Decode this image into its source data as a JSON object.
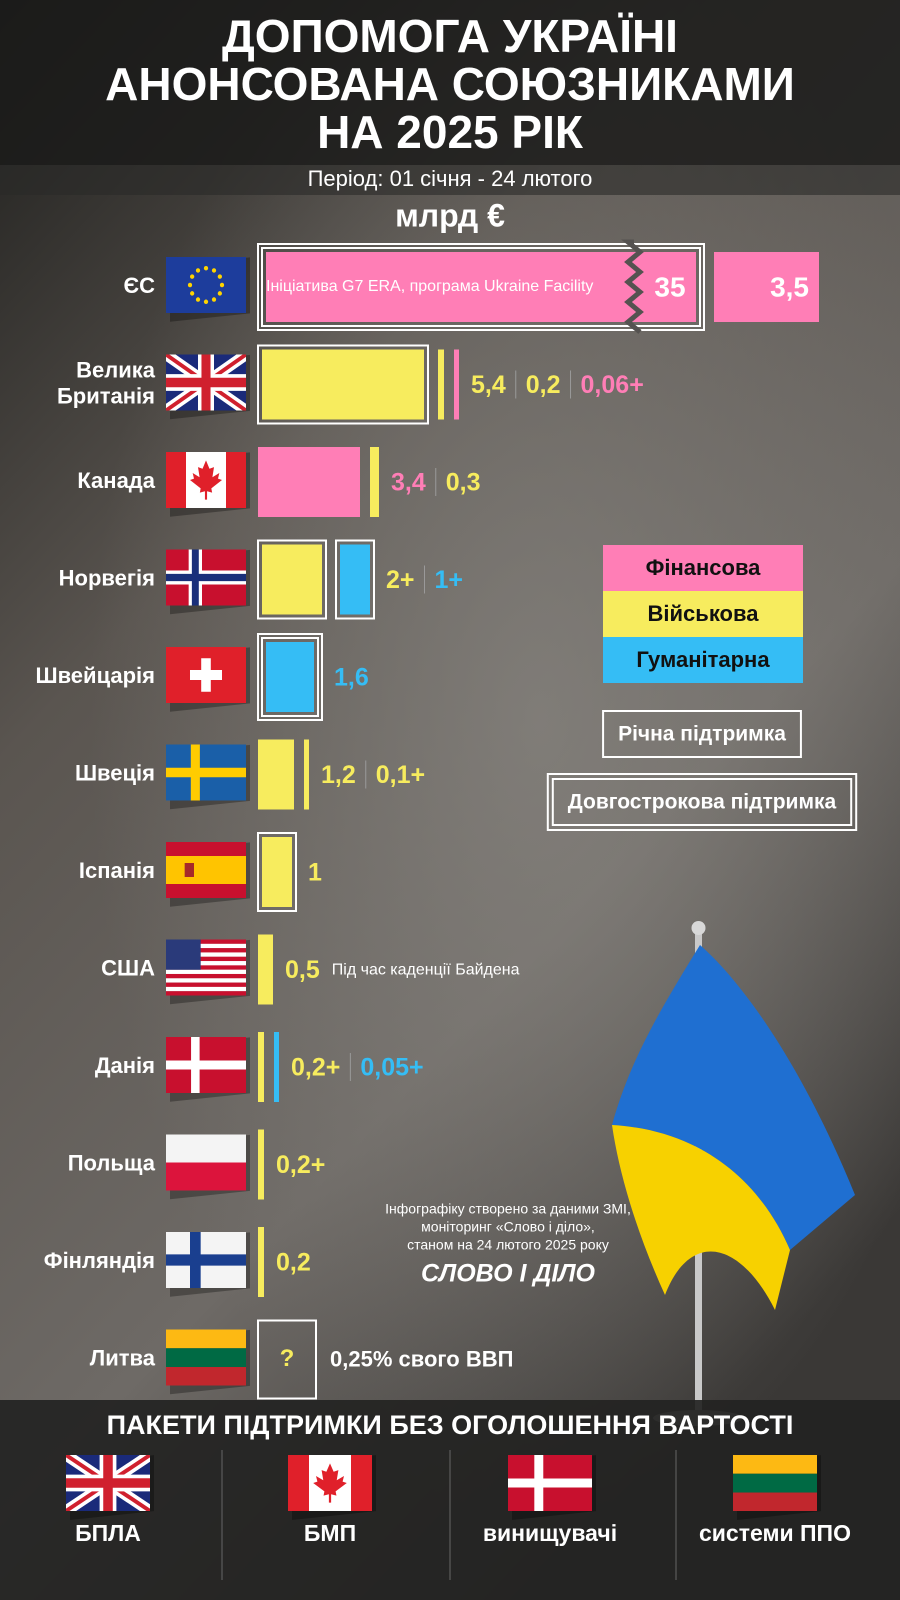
{
  "header": {
    "title": [
      "ДОПОМОГА УКРАЇНІ",
      "АНОНСОВАНА СОЮЗНИКАМИ",
      "НА 2025 РІК"
    ],
    "period": "Період: 01 січня - 24 лютого",
    "unit": "млрд €"
  },
  "rows": [
    {
      "name": [
        "ЄС"
      ],
      "labels_inside": true,
      "note": "Ініціатива G7 ERA, програма Ukraine Facility",
      "items": [
        {
          "value": 35,
          "label": "35",
          "color": "#ff7eb6",
          "frame": "double"
        },
        {
          "value": 3.5,
          "label": "3,5",
          "color": "#ff7eb6"
        }
      ]
    },
    {
      "name": [
        "Велика",
        "Британія"
      ],
      "items": [
        {
          "value": 5.4,
          "label": "5,4",
          "color": "#f7ec5e",
          "frame": "single"
        },
        {
          "value": 0.2,
          "label": "0,2",
          "color": "#f7ec5e"
        },
        {
          "value": 0.06,
          "label": "0,06+",
          "color": "#ff7eb6"
        }
      ]
    },
    {
      "name": [
        "Канада"
      ],
      "items": [
        {
          "value": 3.4,
          "label": "3,4",
          "color": "#ff7eb6"
        },
        {
          "value": 0.3,
          "label": "0,3",
          "color": "#f7ec5e"
        }
      ]
    },
    {
      "name": [
        "Норвегія"
      ],
      "items": [
        {
          "value": 2,
          "label": "2+",
          "color": "#f7ec5e",
          "frame": "single"
        },
        {
          "value": 1,
          "label": "1+",
          "color": "#35bdf5",
          "frame": "single"
        }
      ]
    },
    {
      "name": [
        "Швейцарія"
      ],
      "items": [
        {
          "value": 1.6,
          "label": "1,6",
          "color": "#35bdf5",
          "frame": "double"
        }
      ]
    },
    {
      "name": [
        "Швеція"
      ],
      "items": [
        {
          "value": 1.2,
          "label": "1,2",
          "color": "#f7ec5e"
        },
        {
          "value": 0.1,
          "label": "0,1+",
          "color": "#f7ec5e"
        }
      ]
    },
    {
      "name": [
        "Іспанія"
      ],
      "items": [
        {
          "value": 1,
          "label": "1",
          "color": "#f7ec5e",
          "frame": "single"
        }
      ]
    },
    {
      "name": [
        "США"
      ],
      "note": "Під час каденції Байдена",
      "items": [
        {
          "value": 0.5,
          "label": "0,5",
          "color": "#f7ec5e"
        }
      ]
    },
    {
      "name": [
        "Данія"
      ],
      "items": [
        {
          "value": 0.2,
          "label": "0,2+",
          "color": "#f7ec5e"
        },
        {
          "value": 0.05,
          "label": "0,05+",
          "color": "#35bdf5"
        }
      ]
    },
    {
      "name": [
        "Польща"
      ],
      "items": [
        {
          "value": 0.2,
          "label": "0,2+",
          "color": "#f7ec5e"
        }
      ]
    },
    {
      "name": [
        "Фінляндія"
      ],
      "items": [
        {
          "value": 0.2,
          "label": "0,2",
          "color": "#f7ec5e"
        }
      ]
    },
    {
      "name": [
        "Литва"
      ],
      "note": "0,25% свого ВВП",
      "items": [
        {
          "label": "?",
          "color": "#f7ec5e",
          "frame": "single"
        }
      ]
    }
  ],
  "legend": {
    "types": [
      {
        "label": "Фінансова",
        "color": "#ff7eb6"
      },
      {
        "label": "Військова",
        "color": "#f7ec5e"
      },
      {
        "label": "Гуманітарна",
        "color": "#35bdf5"
      }
    ],
    "frames": [
      {
        "label": "Річна підтримка",
        "frame": "single"
      },
      {
        "label": "Довгострокова підтримка",
        "frame": "double"
      }
    ]
  },
  "source": {
    "lines": [
      "Інфографіку створено за даними ЗМІ,",
      "моніторинг «Слово і діло»,",
      "станом на 24 лютого 2025 року"
    ],
    "logo": "СЛОВО І ДІЛО"
  },
  "packages": {
    "title": "ПАКЕТИ ПІДТРИМКИ БЕЗ ОГОЛОШЕННЯ ВАРТОСТІ",
    "items": [
      "БПЛА",
      "БМП",
      "винищувачі",
      "системи ППО"
    ]
  }
}
